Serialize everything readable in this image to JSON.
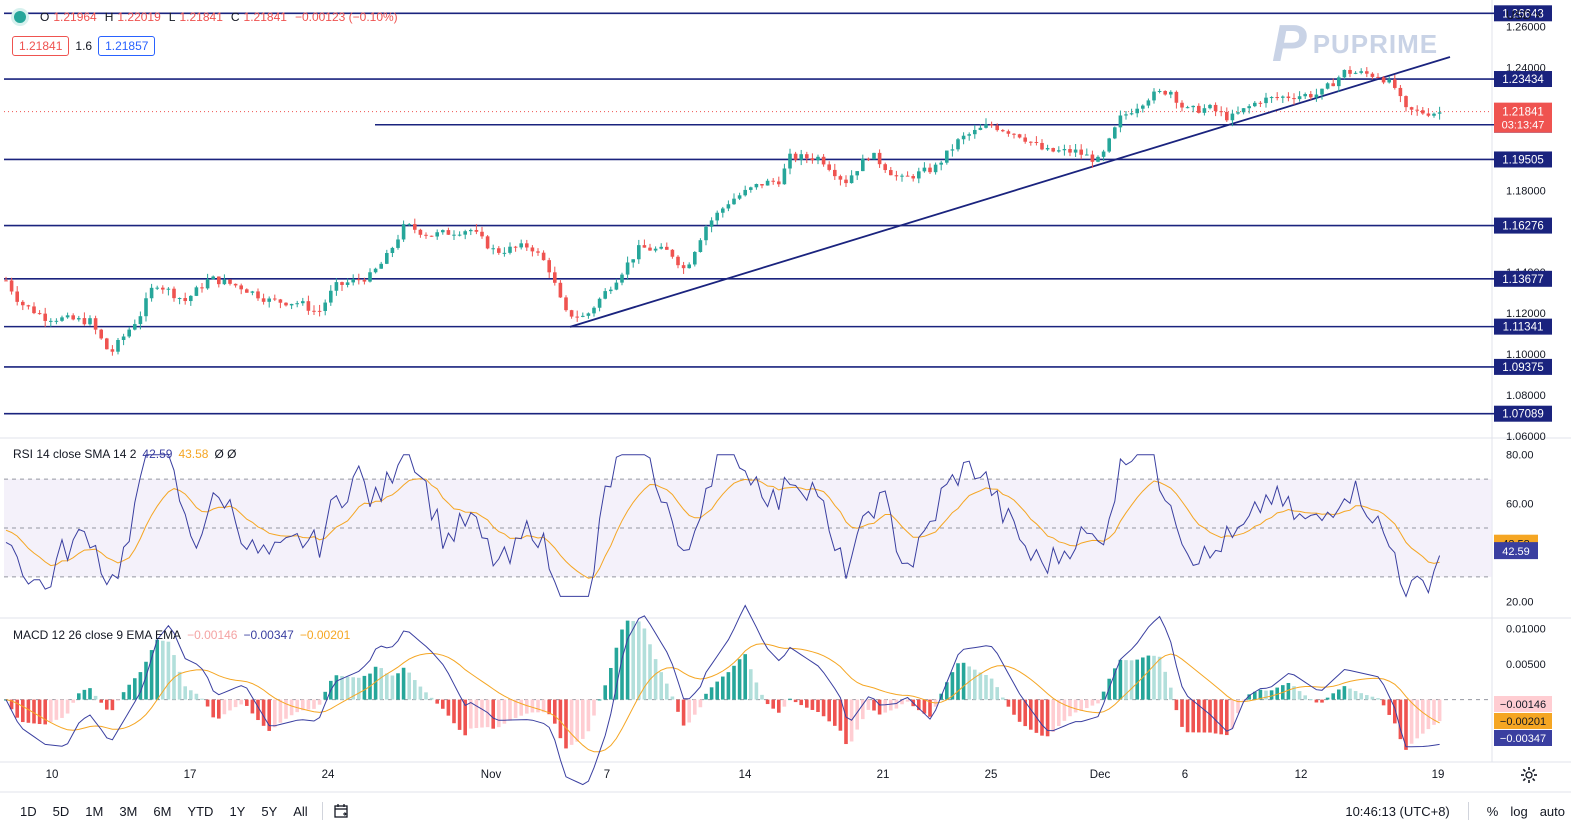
{
  "ohlc": {
    "open_label": "O",
    "open": "1.21964",
    "high_label": "H",
    "high": "1.22019",
    "low_label": "L",
    "low": "1.21841",
    "close_label": "C",
    "close": "1.21841",
    "change": "−0.00123 (−0.10%)"
  },
  "quote": {
    "sell": "1.21841",
    "spread": "1.6",
    "buy": "1.21857"
  },
  "logo": {
    "mark": "P",
    "text": "PUPRIME"
  },
  "currency": "USD ˅",
  "price_axis": {
    "ticks": [
      "1.26000",
      "1.24000",
      "1.18000",
      "1.14000",
      "1.12000",
      "1.10000",
      "1.08000",
      "1.06000"
    ],
    "levels": [
      "1.26643",
      "1.23434",
      "1.21201",
      "1.19505",
      "1.16276",
      "1.13677",
      "1.11341",
      "1.09375",
      "1.07089"
    ],
    "last_price": "1.21841",
    "countdown": "03:13:47"
  },
  "rsi": {
    "legend": "RSI 14 close SMA 14 2",
    "value": "42.59",
    "sma": "43.58",
    "extra": "Ø Ø",
    "ticks": [
      "80.00",
      "60.00",
      "40.00",
      "20.00"
    ],
    "badge_sma": "43.58",
    "badge_rsi": "42.59"
  },
  "macd": {
    "legend": "MACD 12 26 close 9 EMA EMA",
    "hist": "−0.00146",
    "macd": "−0.00347",
    "signal": "−0.00201",
    "ticks": [
      "0.01000",
      "0.00500",
      "0.00000"
    ],
    "badge_hist": "−0.00146",
    "badge_signal": "−0.00201",
    "badge_macd": "−0.00347"
  },
  "time_axis": [
    "10",
    "17",
    "24",
    "Nov",
    "7",
    "14",
    "21",
    "25",
    "Dec",
    "6",
    "12",
    "19"
  ],
  "timeframes": [
    "1D",
    "5D",
    "1M",
    "3M",
    "6M",
    "YTD",
    "1Y",
    "5Y",
    "All"
  ],
  "clock": "10:46:13 (UTC+8)",
  "scale_options": [
    "%",
    "log",
    "auto"
  ],
  "colors": {
    "up": "#26a69a",
    "down": "#ef5350",
    "level": "#1a237e",
    "rsi": "#3a3fa0",
    "sma": "#f5a623",
    "badge": "#1a237e"
  }
}
